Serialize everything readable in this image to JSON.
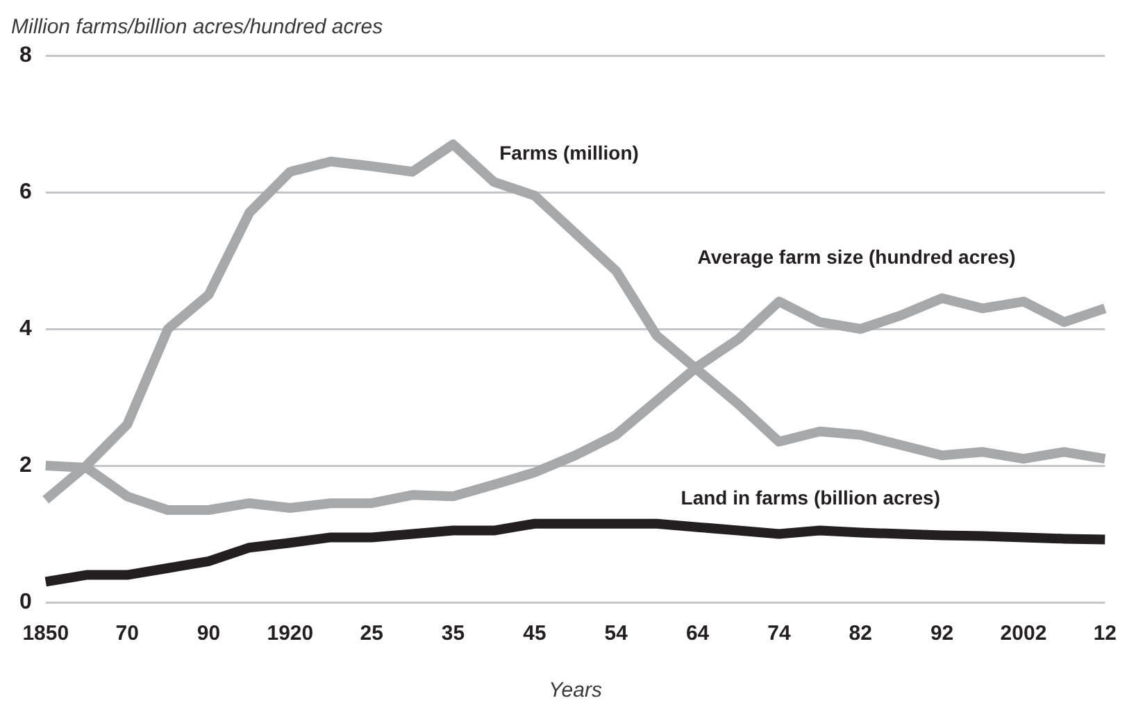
{
  "chart_data": {
    "type": "line",
    "ylabel": "Million farms/billion acres/hundred acres",
    "xlabel": "Years",
    "categories": [
      "1850",
      null,
      "70",
      null,
      "90",
      null,
      "1920",
      null,
      "25",
      null,
      "35",
      null,
      "45",
      null,
      "54",
      null,
      "64",
      null,
      "74",
      null,
      "82",
      null,
      "92",
      null,
      "2002",
      null,
      "12"
    ],
    "series": [
      {
        "name": "Farms (million)",
        "color": "#a7a8aa",
        "values": [
          1.5,
          2.0,
          2.6,
          4.0,
          4.5,
          5.7,
          6.3,
          6.45,
          6.38,
          6.3,
          6.7,
          6.15,
          5.95,
          5.4,
          4.85,
          3.9,
          3.4,
          2.9,
          2.35,
          2.5,
          2.45,
          2.3,
          2.15,
          2.2,
          2.1,
          2.2,
          2.1
        ]
      },
      {
        "name": "Average farm size (hundred acres)",
        "color": "#a7a8aa",
        "values": [
          2.0,
          1.97,
          1.55,
          1.35,
          1.35,
          1.45,
          1.38,
          1.45,
          1.45,
          1.57,
          1.55,
          1.72,
          1.9,
          2.15,
          2.45,
          2.95,
          3.45,
          3.85,
          4.4,
          4.1,
          4.0,
          4.2,
          4.45,
          4.3,
          4.4,
          4.1,
          4.3
        ]
      },
      {
        "name": "Land in farms (billion acres)",
        "color": "#231f20",
        "values": [
          0.3,
          0.4,
          0.4,
          0.5,
          0.6,
          0.8,
          0.87,
          0.95,
          0.95,
          1.0,
          1.05,
          1.05,
          1.15,
          1.15,
          1.15,
          1.15,
          1.1,
          1.05,
          1.0,
          1.05,
          1.02,
          1.0,
          0.98,
          0.97,
          0.95,
          0.93,
          0.92
        ]
      }
    ],
    "ylim": [
      0,
      8
    ],
    "yticks": [
      0,
      2,
      4,
      6,
      8
    ],
    "grid": "y",
    "legend": false,
    "marker": "none",
    "line_style": "solid"
  }
}
